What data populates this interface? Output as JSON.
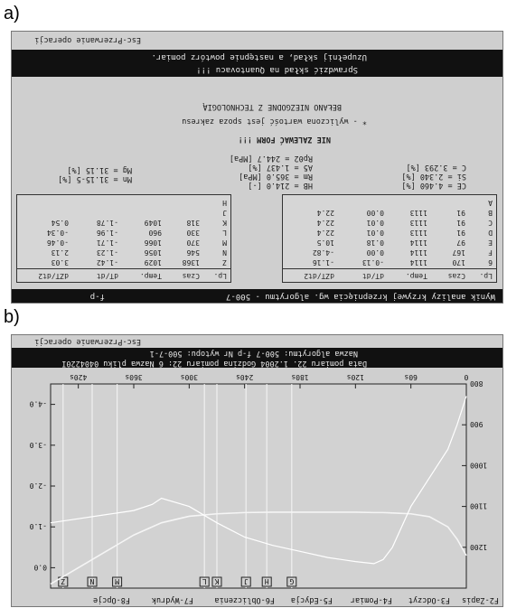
{
  "panel_a": {
    "label": "a)",
    "header": "Wynik analizy krzywej krzepnięcia wg. algorytmu - 500-7",
    "header_tag": "f-p",
    "footer": "Esc-Przerwanie operacji",
    "messages": [
      "Uzupełnij skład, a następnie powtórz pomiar.",
      "Sprawdzić skład na Quantovacu !!!"
    ],
    "warnings": [
      "BEŁANO NIEZGODNE Z TECHNOLOGIĄ",
      "* - wyliczona wartość jest spoza zakresu",
      "NIE ZALEWAĆ FORM !!!"
    ],
    "left_table": {
      "headers": [
        "Lp.",
        "Czas",
        "Temp.",
        "dT/dt",
        "dZT/dt2"
      ],
      "rows": [
        [
          "6",
          "170",
          "1114",
          "-0.13",
          "-1.16"
        ],
        [
          "F",
          "167",
          "1114",
          "0.00",
          "-4.82"
        ],
        [
          "E",
          "97",
          "1114",
          "0.18",
          "10.5"
        ],
        [
          "D",
          "91",
          "1113",
          "0.01",
          "22.4"
        ],
        [
          "C",
          "91",
          "1113",
          "0.01",
          "22.4"
        ],
        [
          "B",
          "91",
          "1113",
          "0.00",
          "22.4"
        ],
        [
          "A",
          "",
          "",
          "",
          ""
        ]
      ]
    },
    "right_table": {
      "headers": [
        "Lp.",
        "Czas",
        "Temp.",
        "dT/dt",
        "dZT/dt2"
      ],
      "rows": [
        [
          "Z",
          "1368",
          "1029",
          "-1.42",
          "3.03"
        ],
        [
          "N",
          "546",
          "1056",
          "-1.23",
          "2.13"
        ],
        [
          "M",
          "370",
          "1066",
          "-1.71",
          "-0.46"
        ],
        [
          "L",
          "330",
          "960",
          "-1.96",
          "-0.34"
        ],
        [
          "K",
          "318",
          "1049",
          "-1.78",
          "0.54"
        ],
        [
          "J",
          "",
          "",
          "",
          ""
        ],
        [
          "H",
          "",
          "",
          "",
          ""
        ]
      ]
    },
    "params_left": [
      "CE = 4.460 [%]",
      "Si = 2.340 [%]",
      "C = 3.293 [%]"
    ],
    "params_mid": [
      "HB = 214.0 [-]",
      "Rm = 365.0 [MPa]",
      "A5 = 1.437 [%]",
      "Rp02 = 244.7 [MPa]"
    ],
    "params_right": [
      "Mn = 31.15-5 [%]",
      "Mg = 31.15 [%]"
    ]
  },
  "panel_b": {
    "label": "b)",
    "footer": "Esc-Przerwanie operacji",
    "info": [
      "Data pomiaru 22. 1.2004  Godzina pomiaru 22: 6  Nazwa pliku 0404220I",
      "Nazwa algorytmu:     500-7    f-p    Nr wytopu: 500-7-1"
    ],
    "function_keys": [
      "F2-Zapis",
      "F3-Odczyt",
      "F4-Pomiar",
      "F5-Edycja",
      "F6-Obliczenia",
      "F7-Wydruk",
      "F8-Opcje"
    ],
    "markers": [
      "Z",
      "N",
      "M",
      "L",
      "K",
      "J",
      "H",
      "G"
    ],
    "chart_data": {
      "type": "line",
      "x_ticks": [
        "0",
        "60s",
        "120s",
        "180s",
        "240s",
        "300s",
        "360s",
        "420s"
      ],
      "y_left_ticks": [
        "800",
        "900",
        "1000",
        "1100",
        "1200"
      ],
      "y_right_ticks": [
        "-4.0",
        "-3.0",
        "-2.0",
        "-1.0",
        "0.0"
      ],
      "series": [
        {
          "x": [
            0,
            10,
            20,
            40,
            60,
            80,
            90,
            100,
            120,
            150,
            180,
            210,
            240,
            270,
            300,
            330,
            360,
            390,
            420,
            450
          ],
          "y": [
            1220,
            1180,
            1150,
            1125,
            1118,
            1116,
            1115,
            1115,
            1114,
            1114,
            1114,
            1114,
            1115,
            1118,
            1124,
            1140,
            1170,
            1210,
            1250,
            1290
          ]
        },
        {
          "x": [
            0,
            10,
            20,
            40,
            60,
            80,
            90,
            100,
            120,
            150,
            180,
            210,
            240,
            270,
            300,
            330,
            340,
            360,
            390,
            420,
            450
          ],
          "y": [
            -4.2,
            -3.5,
            -2.9,
            -2.2,
            -1.5,
            -0.5,
            -0.2,
            -0.1,
            -0.15,
            -0.25,
            -0.4,
            -0.55,
            -0.75,
            -1.1,
            -1.5,
            -1.7,
            -1.55,
            -1.4,
            -1.3,
            -1.2,
            -1.1
          ]
        }
      ],
      "ylim_left": [
        800,
        1300
      ],
      "ylim_right": [
        -4.5,
        0.5
      ],
      "xlim": [
        0,
        450
      ]
    }
  }
}
